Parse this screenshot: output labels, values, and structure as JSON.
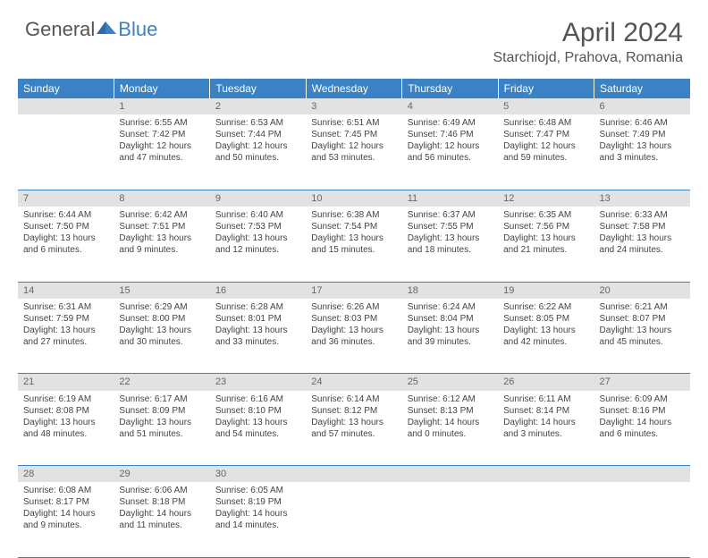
{
  "brand": {
    "general": "General",
    "blue": "Blue"
  },
  "title": "April 2024",
  "location": "Starchiojd, Prahova, Romania",
  "colors": {
    "header_bg": "#3b82c4",
    "daynum_bg": "#e2e2e2",
    "rule": "#3b82c4"
  },
  "day_headers": [
    "Sunday",
    "Monday",
    "Tuesday",
    "Wednesday",
    "Thursday",
    "Friday",
    "Saturday"
  ],
  "weeks": [
    {
      "nums": [
        "",
        "1",
        "2",
        "3",
        "4",
        "5",
        "6"
      ],
      "cells": [
        {
          "sunrise": "",
          "sunset": "",
          "daylight": ""
        },
        {
          "sunrise": "Sunrise: 6:55 AM",
          "sunset": "Sunset: 7:42 PM",
          "daylight": "Daylight: 12 hours and 47 minutes."
        },
        {
          "sunrise": "Sunrise: 6:53 AM",
          "sunset": "Sunset: 7:44 PM",
          "daylight": "Daylight: 12 hours and 50 minutes."
        },
        {
          "sunrise": "Sunrise: 6:51 AM",
          "sunset": "Sunset: 7:45 PM",
          "daylight": "Daylight: 12 hours and 53 minutes."
        },
        {
          "sunrise": "Sunrise: 6:49 AM",
          "sunset": "Sunset: 7:46 PM",
          "daylight": "Daylight: 12 hours and 56 minutes."
        },
        {
          "sunrise": "Sunrise: 6:48 AM",
          "sunset": "Sunset: 7:47 PM",
          "daylight": "Daylight: 12 hours and 59 minutes."
        },
        {
          "sunrise": "Sunrise: 6:46 AM",
          "sunset": "Sunset: 7:49 PM",
          "daylight": "Daylight: 13 hours and 3 minutes."
        }
      ]
    },
    {
      "nums": [
        "7",
        "8",
        "9",
        "10",
        "11",
        "12",
        "13"
      ],
      "cells": [
        {
          "sunrise": "Sunrise: 6:44 AM",
          "sunset": "Sunset: 7:50 PM",
          "daylight": "Daylight: 13 hours and 6 minutes."
        },
        {
          "sunrise": "Sunrise: 6:42 AM",
          "sunset": "Sunset: 7:51 PM",
          "daylight": "Daylight: 13 hours and 9 minutes."
        },
        {
          "sunrise": "Sunrise: 6:40 AM",
          "sunset": "Sunset: 7:53 PM",
          "daylight": "Daylight: 13 hours and 12 minutes."
        },
        {
          "sunrise": "Sunrise: 6:38 AM",
          "sunset": "Sunset: 7:54 PM",
          "daylight": "Daylight: 13 hours and 15 minutes."
        },
        {
          "sunrise": "Sunrise: 6:37 AM",
          "sunset": "Sunset: 7:55 PM",
          "daylight": "Daylight: 13 hours and 18 minutes."
        },
        {
          "sunrise": "Sunrise: 6:35 AM",
          "sunset": "Sunset: 7:56 PM",
          "daylight": "Daylight: 13 hours and 21 minutes."
        },
        {
          "sunrise": "Sunrise: 6:33 AM",
          "sunset": "Sunset: 7:58 PM",
          "daylight": "Daylight: 13 hours and 24 minutes."
        }
      ]
    },
    {
      "nums": [
        "14",
        "15",
        "16",
        "17",
        "18",
        "19",
        "20"
      ],
      "cells": [
        {
          "sunrise": "Sunrise: 6:31 AM",
          "sunset": "Sunset: 7:59 PM",
          "daylight": "Daylight: 13 hours and 27 minutes."
        },
        {
          "sunrise": "Sunrise: 6:29 AM",
          "sunset": "Sunset: 8:00 PM",
          "daylight": "Daylight: 13 hours and 30 minutes."
        },
        {
          "sunrise": "Sunrise: 6:28 AM",
          "sunset": "Sunset: 8:01 PM",
          "daylight": "Daylight: 13 hours and 33 minutes."
        },
        {
          "sunrise": "Sunrise: 6:26 AM",
          "sunset": "Sunset: 8:03 PM",
          "daylight": "Daylight: 13 hours and 36 minutes."
        },
        {
          "sunrise": "Sunrise: 6:24 AM",
          "sunset": "Sunset: 8:04 PM",
          "daylight": "Daylight: 13 hours and 39 minutes."
        },
        {
          "sunrise": "Sunrise: 6:22 AM",
          "sunset": "Sunset: 8:05 PM",
          "daylight": "Daylight: 13 hours and 42 minutes."
        },
        {
          "sunrise": "Sunrise: 6:21 AM",
          "sunset": "Sunset: 8:07 PM",
          "daylight": "Daylight: 13 hours and 45 minutes."
        }
      ]
    },
    {
      "nums": [
        "21",
        "22",
        "23",
        "24",
        "25",
        "26",
        "27"
      ],
      "cells": [
        {
          "sunrise": "Sunrise: 6:19 AM",
          "sunset": "Sunset: 8:08 PM",
          "daylight": "Daylight: 13 hours and 48 minutes."
        },
        {
          "sunrise": "Sunrise: 6:17 AM",
          "sunset": "Sunset: 8:09 PM",
          "daylight": "Daylight: 13 hours and 51 minutes."
        },
        {
          "sunrise": "Sunrise: 6:16 AM",
          "sunset": "Sunset: 8:10 PM",
          "daylight": "Daylight: 13 hours and 54 minutes."
        },
        {
          "sunrise": "Sunrise: 6:14 AM",
          "sunset": "Sunset: 8:12 PM",
          "daylight": "Daylight: 13 hours and 57 minutes."
        },
        {
          "sunrise": "Sunrise: 6:12 AM",
          "sunset": "Sunset: 8:13 PM",
          "daylight": "Daylight: 14 hours and 0 minutes."
        },
        {
          "sunrise": "Sunrise: 6:11 AM",
          "sunset": "Sunset: 8:14 PM",
          "daylight": "Daylight: 14 hours and 3 minutes."
        },
        {
          "sunrise": "Sunrise: 6:09 AM",
          "sunset": "Sunset: 8:16 PM",
          "daylight": "Daylight: 14 hours and 6 minutes."
        }
      ]
    },
    {
      "nums": [
        "28",
        "29",
        "30",
        "",
        "",
        "",
        ""
      ],
      "cells": [
        {
          "sunrise": "Sunrise: 6:08 AM",
          "sunset": "Sunset: 8:17 PM",
          "daylight": "Daylight: 14 hours and 9 minutes."
        },
        {
          "sunrise": "Sunrise: 6:06 AM",
          "sunset": "Sunset: 8:18 PM",
          "daylight": "Daylight: 14 hours and 11 minutes."
        },
        {
          "sunrise": "Sunrise: 6:05 AM",
          "sunset": "Sunset: 8:19 PM",
          "daylight": "Daylight: 14 hours and 14 minutes."
        },
        {
          "sunrise": "",
          "sunset": "",
          "daylight": ""
        },
        {
          "sunrise": "",
          "sunset": "",
          "daylight": ""
        },
        {
          "sunrise": "",
          "sunset": "",
          "daylight": ""
        },
        {
          "sunrise": "",
          "sunset": "",
          "daylight": ""
        }
      ]
    }
  ]
}
